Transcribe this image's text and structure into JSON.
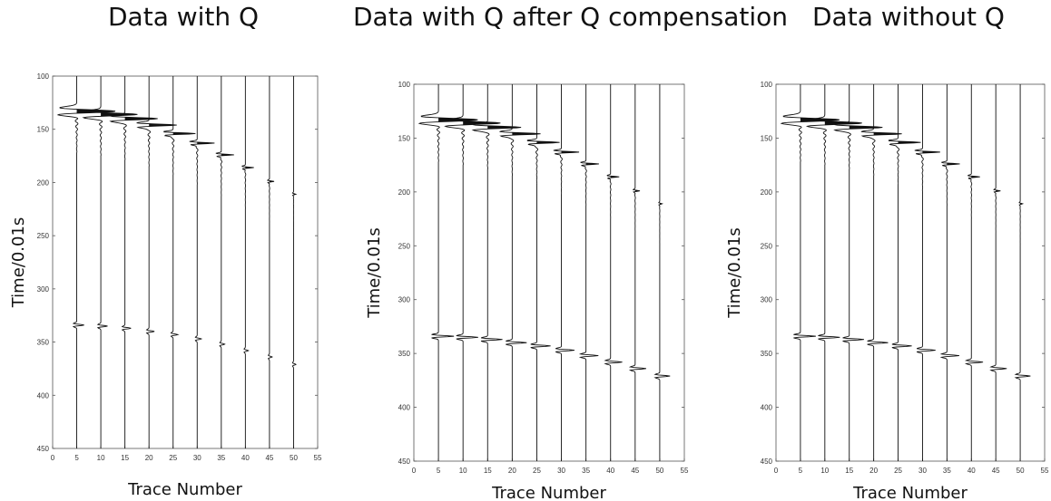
{
  "chart_data": [
    {
      "type": "seismic_traces",
      "title": "Data with Q",
      "xlabel": "Trace Number",
      "ylabel": "Time/0.01s",
      "xlim": [
        0,
        55
      ],
      "ylim": [
        100,
        450
      ],
      "y_inverted": true,
      "xticks": [
        0,
        5,
        10,
        15,
        20,
        25,
        30,
        35,
        40,
        45,
        50,
        55
      ],
      "yticks": [
        100,
        150,
        200,
        250,
        300,
        350,
        400,
        450
      ],
      "traces": [
        5,
        10,
        15,
        20,
        25,
        30,
        35,
        40,
        45,
        50
      ],
      "event1_time": [
        133,
        136,
        140,
        146,
        154,
        163,
        174,
        186,
        199,
        211
      ],
      "event1_amplitude": [
        1.0,
        0.95,
        0.85,
        0.72,
        0.58,
        0.45,
        0.33,
        0.22,
        0.12,
        0.06
      ],
      "event2_time": [
        334,
        335,
        337,
        340,
        343,
        347,
        352,
        358,
        364,
        371
      ],
      "event2_amplitude": [
        0.22,
        0.2,
        0.18,
        0.16,
        0.14,
        0.12,
        0.1,
        0.09,
        0.08,
        0.07
      ]
    },
    {
      "type": "seismic_traces",
      "title": "Data with Q after Q compensation",
      "xlabel": "Trace Number",
      "ylabel": "Time/0.01s",
      "xlim": [
        0,
        55
      ],
      "ylim": [
        100,
        450
      ],
      "y_inverted": true,
      "xticks": [
        0,
        5,
        10,
        15,
        20,
        25,
        30,
        35,
        40,
        45,
        50,
        55
      ],
      "yticks": [
        100,
        150,
        200,
        250,
        300,
        350,
        400,
        450
      ],
      "traces": [
        5,
        10,
        15,
        20,
        25,
        30,
        35,
        40,
        45,
        50
      ],
      "event1_time": [
        133,
        136,
        140,
        146,
        154,
        163,
        174,
        186,
        199,
        211
      ],
      "event1_amplitude": [
        1.0,
        0.95,
        0.85,
        0.72,
        0.58,
        0.45,
        0.33,
        0.22,
        0.12,
        0.06
      ],
      "event2_time": [
        334,
        335,
        337,
        340,
        343,
        347,
        352,
        358,
        364,
        371
      ],
      "event2_amplitude": [
        0.45,
        0.44,
        0.43,
        0.42,
        0.4,
        0.38,
        0.36,
        0.34,
        0.32,
        0.3
      ]
    },
    {
      "type": "seismic_traces",
      "title": "Data without Q",
      "xlabel": "Trace Number",
      "ylabel": "Time/0.01s",
      "xlim": [
        0,
        55
      ],
      "ylim": [
        100,
        450
      ],
      "y_inverted": true,
      "xticks": [
        0,
        5,
        10,
        15,
        20,
        25,
        30,
        35,
        40,
        45,
        50,
        55
      ],
      "yticks": [
        100,
        150,
        200,
        250,
        300,
        350,
        400,
        450
      ],
      "traces": [
        5,
        10,
        15,
        20,
        25,
        30,
        35,
        40,
        45,
        50
      ],
      "event1_time": [
        133,
        136,
        140,
        146,
        154,
        163,
        174,
        186,
        199,
        211
      ],
      "event1_amplitude": [
        1.0,
        0.95,
        0.85,
        0.72,
        0.58,
        0.45,
        0.33,
        0.22,
        0.12,
        0.06
      ],
      "event2_time": [
        334,
        335,
        337,
        340,
        343,
        347,
        352,
        358,
        364,
        371
      ],
      "event2_amplitude": [
        0.45,
        0.44,
        0.43,
        0.42,
        0.4,
        0.38,
        0.36,
        0.34,
        0.32,
        0.3
      ]
    }
  ],
  "colors": {
    "trace": "#111111",
    "axis": "#555555",
    "text": "#111111"
  }
}
